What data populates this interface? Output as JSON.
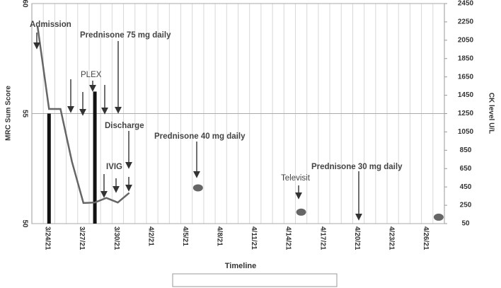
{
  "chart_data": {
    "type": "bar-line",
    "x_title": "Timeline",
    "y_title": "MRC Sum Score",
    "y2_title": "CK level U/L",
    "categories": [
      null,
      "3/24/21",
      null,
      null,
      "3/27/21",
      null,
      null,
      "3/30/21",
      null,
      null,
      "4/2/21",
      null,
      null,
      "4/5/21",
      null,
      null,
      "4/8/21",
      null,
      null,
      "4/11/21",
      null,
      null,
      "4/14/21",
      null,
      null,
      "4/17/21",
      null,
      null,
      "4/20/21",
      null,
      null,
      "4/23/21",
      null,
      null,
      "4/26/21",
      null
    ],
    "series": [
      {
        "name": "MRC sum score",
        "type": "bar",
        "color": "#111111",
        "values": [
          null,
          55,
          null,
          null,
          null,
          56,
          null,
          null,
          null,
          null,
          null,
          null,
          null,
          null,
          null,
          null,
          null,
          null,
          null,
          null,
          null,
          null,
          null,
          null,
          null,
          null,
          null,
          null,
          null,
          null,
          null,
          null,
          null,
          null,
          null,
          null
        ]
      },
      {
        "name": "CK level",
        "type": "line",
        "axis": "y2",
        "color": "#666666",
        "values": [
          2200,
          1300,
          1300,
          725,
          275,
          280,
          330,
          280,
          385,
          null,
          null,
          null,
          null,
          null,
          440,
          null,
          null,
          null,
          null,
          null,
          null,
          null,
          null,
          175,
          null,
          null,
          null,
          null,
          null,
          null,
          null,
          null,
          null,
          null,
          null,
          120
        ]
      }
    ],
    "ylim": [
      50,
      60
    ],
    "yticks": [
      50,
      55,
      60
    ],
    "y2lim": [
      50,
      2450
    ],
    "y2ticks": [
      50,
      250,
      450,
      650,
      850,
      1050,
      1250,
      1450,
      1650,
      1850,
      2050,
      2250,
      2450
    ],
    "grid": true,
    "annotations": [
      "Admission",
      "Prednisone 75 mg daily",
      "PLEX",
      "Discharge",
      "IVIG",
      "Prednisone 40 mg daily",
      "Televisit",
      "Prednisone 30 mg daily"
    ]
  }
}
